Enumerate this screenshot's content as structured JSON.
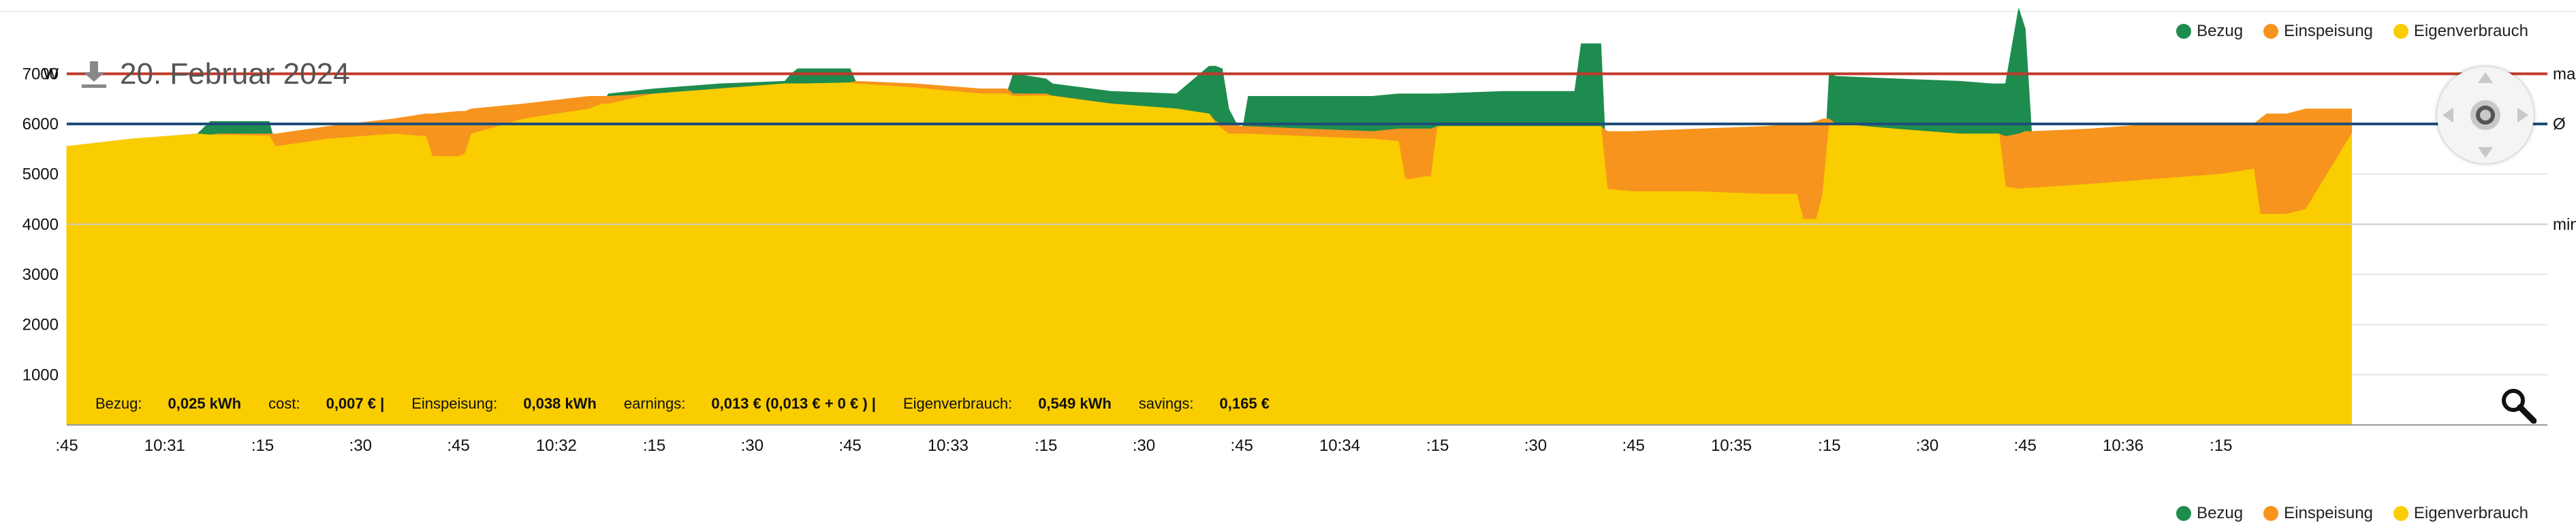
{
  "header": {
    "title": "20. Februar 2024"
  },
  "legend": {
    "items": [
      {
        "label": "Bezug",
        "color": "#1e8c4e"
      },
      {
        "label": "Einspeisung",
        "color": "#f7941d"
      },
      {
        "label": "Eigenverbrauch",
        "color": "#f9cd00"
      }
    ]
  },
  "summary": {
    "bezug_label": "Bezug:",
    "bezug_value": "0,025 kWh",
    "cost_label": "cost:",
    "cost_value": "0,007 € |",
    "einspeisung_label": "Einspeisung:",
    "einspeisung_value": "0,038 kWh",
    "earnings_label": "earnings:",
    "earnings_value": "0,013 € (0,013 € + 0 € ) |",
    "eigen_label": "Eigenverbrauch:",
    "eigen_value": "0,549 kWh",
    "savings_label": "savings:",
    "savings_value": "0,165 €"
  },
  "chart_data": {
    "type": "area",
    "ylabel": "W",
    "ylim": [
      0,
      8200
    ],
    "yticks": [
      1000,
      2000,
      3000,
      4000,
      5000,
      6000,
      7000
    ],
    "xlim": [
      0,
      380
    ],
    "x_ticks": [
      {
        "x": 0,
        "label": ":45"
      },
      {
        "x": 15,
        "label": "10:31"
      },
      {
        "x": 30,
        "label": ":15"
      },
      {
        "x": 45,
        "label": ":30"
      },
      {
        "x": 60,
        "label": ":45"
      },
      {
        "x": 75,
        "label": "10:32"
      },
      {
        "x": 90,
        "label": ":15"
      },
      {
        "x": 105,
        "label": ":30"
      },
      {
        "x": 120,
        "label": ":45"
      },
      {
        "x": 135,
        "label": "10:33"
      },
      {
        "x": 150,
        "label": ":15"
      },
      {
        "x": 165,
        "label": ":30"
      },
      {
        "x": 180,
        "label": ":45"
      },
      {
        "x": 195,
        "label": "10:34"
      },
      {
        "x": 210,
        "label": ":15"
      },
      {
        "x": 225,
        "label": ":30"
      },
      {
        "x": 240,
        "label": ":45"
      },
      {
        "x": 255,
        "label": "10:35"
      },
      {
        "x": 270,
        "label": ":15"
      },
      {
        "x": 285,
        "label": ":30"
      },
      {
        "x": 300,
        "label": ":45"
      },
      {
        "x": 315,
        "label": "10:36"
      },
      {
        "x": 330,
        "label": ":15"
      }
    ],
    "reference_lines": [
      {
        "name": "max",
        "label": "max",
        "value": 7000,
        "color": "#c0392b"
      },
      {
        "name": "avg",
        "label": "Ø",
        "value": 6000,
        "color": "#1f4e79"
      },
      {
        "name": "min",
        "label": "min",
        "value": 4000,
        "color": "#cccccc"
      }
    ],
    "x": [
      0,
      10,
      20,
      22,
      23,
      31,
      32,
      40,
      50,
      55,
      56,
      60,
      61,
      62,
      70,
      80,
      82,
      83,
      90,
      100,
      110,
      111,
      112,
      113,
      120,
      121,
      130,
      140,
      144,
      145,
      150,
      151,
      160,
      170,
      175,
      176,
      177,
      178,
      180,
      181,
      190,
      200,
      204,
      205,
      206,
      208,
      209,
      210,
      220,
      230,
      231,
      232,
      233,
      235,
      236,
      240,
      250,
      260,
      265,
      266,
      268,
      269,
      270,
      271,
      280,
      290,
      295,
      296,
      297,
      299,
      300,
      301,
      310,
      320,
      330,
      335,
      336,
      337,
      338,
      340,
      343,
      350
    ],
    "series": [
      {
        "name": "Eigenverbrauch",
        "color": "#f9cd00",
        "values": [
          5550,
          5700,
          5800,
          5780,
          5780,
          5760,
          5550,
          5700,
          5800,
          5750,
          5350,
          5350,
          5400,
          5800,
          6100,
          6300,
          6400,
          6400,
          6600,
          6700,
          6800,
          6800,
          6800,
          6800,
          6820,
          6800,
          6720,
          6600,
          6600,
          6550,
          6560,
          6550,
          6400,
          6300,
          6200,
          6000,
          5900,
          5800,
          5800,
          5800,
          5750,
          5700,
          5650,
          4900,
          4900,
          4950,
          4950,
          5950,
          5950,
          5950,
          5950,
          5950,
          5950,
          5950,
          4700,
          4650,
          4650,
          4600,
          4600,
          4100,
          4100,
          4600,
          6000,
          6000,
          5900,
          5800,
          5800,
          5800,
          4750,
          4700,
          4720,
          4720,
          4800,
          4900,
          5000,
          5100,
          4200,
          4200,
          4200,
          4200,
          4300,
          5800
        ],
        "note": "Einspeisung/Bezug are the absolute levels of the orange and green tops"
      },
      {
        "name": "Einspeisung",
        "color": "#f7941d",
        "values": [
          5550,
          5700,
          5800,
          5780,
          5800,
          5800,
          5800,
          5950,
          6100,
          6200,
          6200,
          6250,
          6250,
          6300,
          6400,
          6550,
          6550,
          6550,
          6600,
          6700,
          6800,
          6800,
          6800,
          6800,
          6820,
          6850,
          6800,
          6700,
          6700,
          6600,
          6600,
          6560,
          6400,
          6300,
          6200,
          6050,
          6000,
          6000,
          5950,
          5950,
          5900,
          5850,
          5900,
          5900,
          5900,
          5900,
          5900,
          5950,
          5950,
          5950,
          5950,
          5950,
          5950,
          5950,
          5850,
          5850,
          5900,
          5950,
          6000,
          6000,
          6050,
          6100,
          6100,
          6000,
          5900,
          5800,
          5800,
          5800,
          5750,
          5800,
          5850,
          5850,
          5900,
          6000,
          6000,
          6000,
          6100,
          6200,
          6200,
          6200,
          6300,
          6300
        ]
      },
      {
        "name": "Bezug",
        "color": "#1e8c4e",
        "values": [
          5550,
          5700,
          5800,
          6050,
          6050,
          6050,
          5550,
          5700,
          5800,
          5750,
          5350,
          5350,
          5400,
          5800,
          6100,
          6300,
          6400,
          6600,
          6700,
          6800,
          6850,
          7000,
          7100,
          7100,
          7100,
          6800,
          6720,
          6600,
          6600,
          7000,
          6900,
          6800,
          6650,
          6600,
          7150,
          7150,
          7100,
          6300,
          5800,
          6550,
          6550,
          6550,
          6600,
          6600,
          6600,
          6600,
          6600,
          6600,
          6650,
          6650,
          6650,
          7600,
          7600,
          7600,
          4700,
          4650,
          4650,
          4600,
          4600,
          4100,
          4100,
          4600,
          7000,
          6950,
          6900,
          6850,
          6800,
          6800,
          6800,
          8300,
          7900,
          5800,
          4800,
          4900,
          5000,
          5100,
          4200,
          4200,
          4200,
          4200,
          4300,
          5800
        ]
      }
    ]
  }
}
